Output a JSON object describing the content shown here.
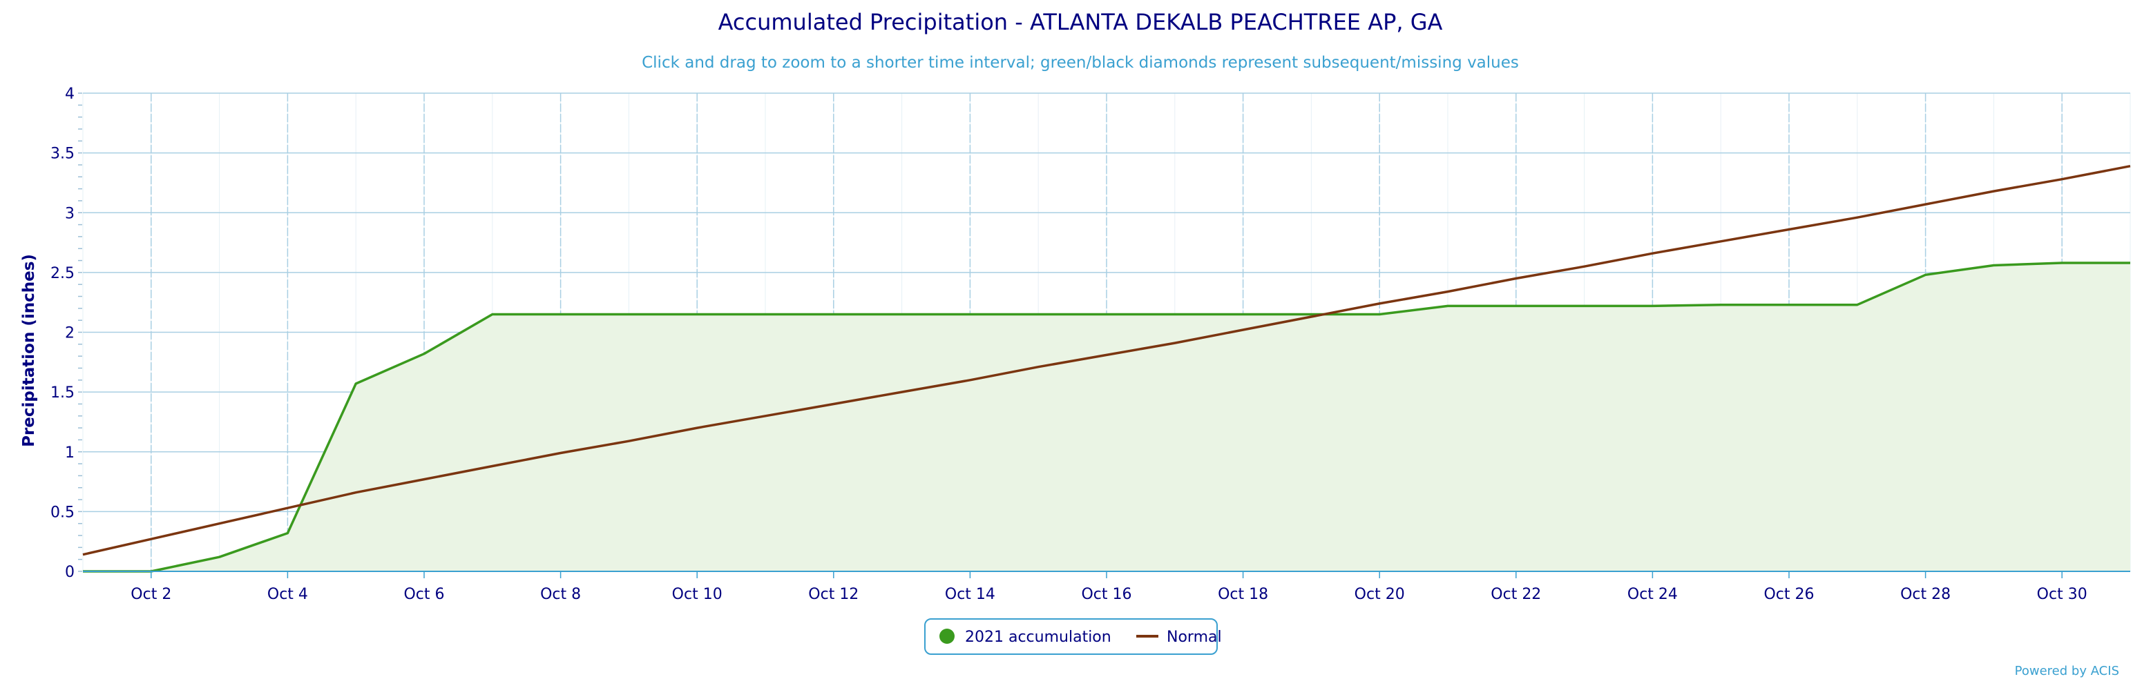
{
  "chart_data": {
    "type": "area",
    "title": "Accumulated Precipitation - ATLANTA DEKALB PEACHTREE AP, GA",
    "subtitle": "Click and drag to zoom to a shorter time interval; green/black diamonds represent subsequent/missing values",
    "ylabel": "Precipitation (inches)",
    "xlabel": "",
    "xlim": [
      1,
      31
    ],
    "ylim": [
      0,
      4
    ],
    "yticks": [
      0,
      0.5,
      1,
      1.5,
      2,
      2.5,
      3,
      3.5,
      4
    ],
    "ytick_labels": [
      "0",
      "0.5",
      "1",
      "1.5",
      "2",
      "2.5",
      "3",
      "3.5",
      "4"
    ],
    "xticks": [
      2,
      4,
      6,
      8,
      10,
      12,
      14,
      16,
      18,
      20,
      22,
      24,
      26,
      28,
      30
    ],
    "xtick_labels": [
      "Oct 2",
      "Oct 4",
      "Oct 6",
      "Oct 8",
      "Oct 10",
      "Oct 12",
      "Oct 14",
      "Oct 16",
      "Oct 18",
      "Oct 20",
      "Oct 22",
      "Oct 24",
      "Oct 26",
      "Oct 28",
      "Oct 30"
    ],
    "grid": true,
    "legend_position": "bottom-center",
    "series": [
      {
        "name": "2021 accumulation",
        "type": "area",
        "color": "#3a9a1e",
        "fill": "#eaf4e4",
        "x": [
          1,
          2,
          3,
          4,
          5,
          6,
          7,
          8,
          9,
          10,
          11,
          12,
          13,
          14,
          15,
          16,
          17,
          18,
          19,
          20,
          21,
          22,
          23,
          24,
          25,
          26,
          27,
          28,
          29,
          30,
          31
        ],
        "values": [
          0,
          0,
          0.12,
          0.32,
          1.57,
          1.82,
          2.15,
          2.15,
          2.15,
          2.15,
          2.15,
          2.15,
          2.15,
          2.15,
          2.15,
          2.15,
          2.15,
          2.15,
          2.15,
          2.15,
          2.22,
          2.22,
          2.22,
          2.22,
          2.23,
          2.23,
          2.23,
          2.48,
          2.56,
          2.58,
          2.58
        ]
      },
      {
        "name": "Normal",
        "type": "line",
        "color": "#7b3510",
        "x": [
          1,
          2,
          3,
          4,
          5,
          6,
          7,
          8,
          9,
          10,
          11,
          12,
          13,
          14,
          15,
          16,
          17,
          18,
          19,
          20,
          21,
          22,
          23,
          24,
          25,
          26,
          27,
          28,
          29,
          30,
          31
        ],
        "values": [
          0.14,
          0.27,
          0.4,
          0.53,
          0.66,
          0.77,
          0.88,
          0.99,
          1.09,
          1.2,
          1.3,
          1.4,
          1.5,
          1.6,
          1.71,
          1.81,
          1.91,
          2.02,
          2.13,
          2.24,
          2.34,
          2.45,
          2.55,
          2.66,
          2.76,
          2.86,
          2.96,
          3.07,
          3.18,
          3.28,
          3.39
        ]
      }
    ]
  },
  "credit": "Powered by ACIS"
}
